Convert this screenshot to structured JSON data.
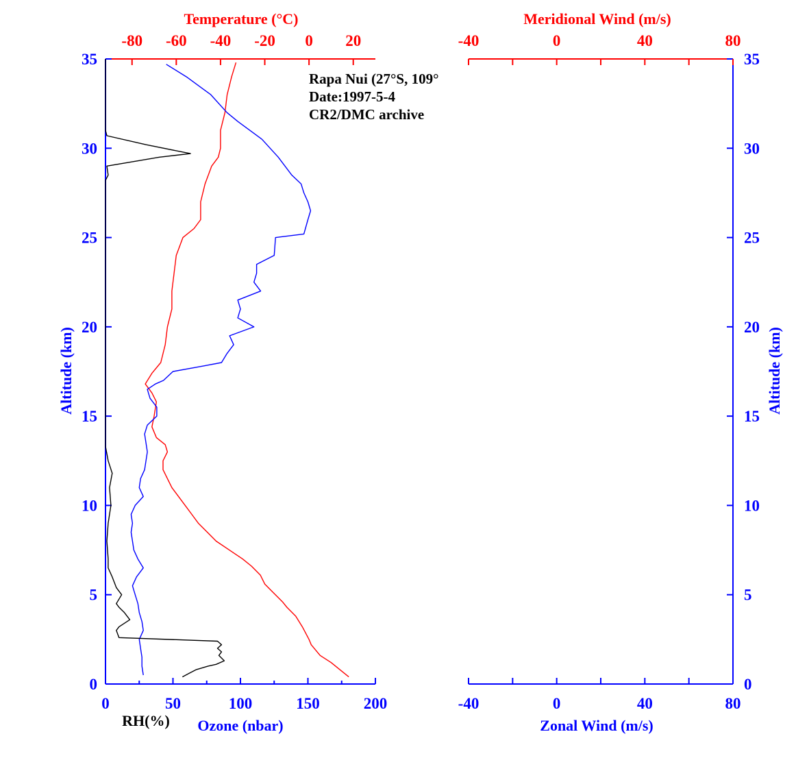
{
  "colors": {
    "blue": "#0000ff",
    "red": "#ff0000",
    "black": "#000000"
  },
  "annotation": {
    "station": "Rapa Nui (27°S, 109°",
    "date": "Date:1997-5-4",
    "archive": "CR2/DMC archive"
  },
  "left_panel": {
    "altitude_label": "Altitude (km)",
    "altitude_ticks": [
      "0",
      "5",
      "10",
      "15",
      "20",
      "25",
      "30",
      "35"
    ],
    "temperature_label": "Temperature (°C)",
    "temperature_ticks": [
      "-80",
      "-60",
      "-40",
      "-20",
      "0",
      "20"
    ],
    "ozone_label": "Ozone (nbar)",
    "rh_label": "RH(%)",
    "ozone_ticks": [
      "0",
      "50",
      "100",
      "150",
      "200"
    ]
  },
  "right_panel": {
    "altitude_label": "Altitude (km)",
    "altitude_ticks": [
      "0",
      "5",
      "10",
      "15",
      "20",
      "25",
      "30",
      "35"
    ],
    "meridional_label": "Meridional Wind (m/s)",
    "meridional_ticks": [
      "-40",
      "0",
      "40",
      "80"
    ],
    "zonal_label": "Zonal Wind (m/s)",
    "zonal_ticks": [
      "-40",
      "0",
      "40",
      "80"
    ]
  },
  "chart_data": {
    "type": "line",
    "ylim": [
      0,
      35
    ],
    "temperature_xlim": [
      -92,
      30
    ],
    "ozone_xlim": [
      0,
      200
    ],
    "rh_xlim": [
      0,
      200
    ],
    "wind_xlim": [
      -40,
      80
    ],
    "grid": false,
    "series": [
      {
        "name": "Temperature (°C)",
        "axis": "temperature",
        "color": "#ff0000",
        "points": [
          [
            18,
            0.4
          ],
          [
            14,
            0.8
          ],
          [
            10,
            1.2
          ],
          [
            5,
            1.6
          ],
          [
            1,
            2.2
          ],
          [
            0,
            2.5
          ],
          [
            -3,
            3.2
          ],
          [
            -6,
            3.8
          ],
          [
            -10,
            4.3
          ],
          [
            -12,
            4.6
          ],
          [
            -16,
            5.1
          ],
          [
            -20,
            5.6
          ],
          [
            -22,
            6.1
          ],
          [
            -26,
            6.6
          ],
          [
            -30,
            7.0
          ],
          [
            -36,
            7.5
          ],
          [
            -42,
            8.0
          ],
          [
            -46,
            8.5
          ],
          [
            -50,
            9.0
          ],
          [
            -53,
            9.5
          ],
          [
            -56,
            10.0
          ],
          [
            -59,
            10.5
          ],
          [
            -62,
            11.0
          ],
          [
            -64,
            11.5
          ],
          [
            -66,
            12.0
          ],
          [
            -66,
            12.5
          ],
          [
            -64,
            13.0
          ],
          [
            -65,
            13.4
          ],
          [
            -69,
            13.8
          ],
          [
            -71,
            14.4
          ],
          [
            -70,
            15.0
          ],
          [
            -69,
            15.8
          ],
          [
            -71,
            16.3
          ],
          [
            -74,
            16.8
          ],
          [
            -71,
            17.4
          ],
          [
            -67,
            18.0
          ],
          [
            -65,
            19.0
          ],
          [
            -64,
            20.0
          ],
          [
            -62,
            21.0
          ],
          [
            -62,
            22.0
          ],
          [
            -61,
            23.0
          ],
          [
            -60,
            24.0
          ],
          [
            -57,
            25.0
          ],
          [
            -52,
            25.5
          ],
          [
            -49,
            26.0
          ],
          [
            -49,
            27.0
          ],
          [
            -47,
            28.0
          ],
          [
            -44,
            29.0
          ],
          [
            -41,
            29.5
          ],
          [
            -40,
            30.0
          ],
          [
            -40,
            31.0
          ],
          [
            -38,
            32.0
          ],
          [
            -37,
            33.0
          ],
          [
            -35,
            34.0
          ],
          [
            -33,
            34.8
          ]
        ]
      },
      {
        "name": "Ozone (nbar)",
        "axis": "ozone",
        "color": "#0000ff",
        "points": [
          [
            28,
            0.5
          ],
          [
            27,
            1.0
          ],
          [
            27,
            1.5
          ],
          [
            26,
            2.0
          ],
          [
            25,
            2.5
          ],
          [
            28,
            3.0
          ],
          [
            27,
            3.5
          ],
          [
            25,
            4.0
          ],
          [
            24,
            4.5
          ],
          [
            22,
            5.0
          ],
          [
            20,
            5.5
          ],
          [
            23,
            6.0
          ],
          [
            28,
            6.5
          ],
          [
            24,
            7.0
          ],
          [
            21,
            7.5
          ],
          [
            20,
            8.0
          ],
          [
            19,
            8.5
          ],
          [
            20,
            9.0
          ],
          [
            19,
            9.5
          ],
          [
            22,
            10.0
          ],
          [
            28,
            10.5
          ],
          [
            25,
            11.0
          ],
          [
            26,
            11.5
          ],
          [
            29,
            12.0
          ],
          [
            30,
            12.5
          ],
          [
            31,
            13.0
          ],
          [
            30,
            13.5
          ],
          [
            29,
            14.0
          ],
          [
            31,
            14.5
          ],
          [
            38,
            15.0
          ],
          [
            38,
            15.5
          ],
          [
            33,
            16.0
          ],
          [
            31,
            16.5
          ],
          [
            37,
            16.8
          ],
          [
            43,
            17.0
          ],
          [
            50,
            17.5
          ],
          [
            72,
            17.8
          ],
          [
            86,
            18.0
          ],
          [
            90,
            18.5
          ],
          [
            95,
            19.0
          ],
          [
            92,
            19.5
          ],
          [
            110,
            20.0
          ],
          [
            98,
            20.5
          ],
          [
            100,
            21.0
          ],
          [
            98,
            21.5
          ],
          [
            115,
            22.0
          ],
          [
            110,
            22.5
          ],
          [
            112,
            23.0
          ],
          [
            112,
            23.5
          ],
          [
            125,
            24.0
          ],
          [
            126,
            25.0
          ],
          [
            147,
            25.2
          ],
          [
            150,
            26.0
          ],
          [
            152,
            26.5
          ],
          [
            150,
            27.0
          ],
          [
            147,
            27.5
          ],
          [
            145,
            28.0
          ],
          [
            138,
            28.5
          ],
          [
            128,
            29.5
          ],
          [
            116,
            30.5
          ],
          [
            98,
            31.5
          ],
          [
            90,
            32.0
          ],
          [
            78,
            33.0
          ],
          [
            60,
            34.0
          ],
          [
            45,
            34.7
          ]
        ]
      },
      {
        "name": "RH(%)",
        "axis": "rh",
        "color": "#000000",
        "points": [
          [
            57,
            0.4
          ],
          [
            62,
            0.6
          ],
          [
            67,
            0.8
          ],
          [
            76,
            1.0
          ],
          [
            82,
            1.1
          ],
          [
            88,
            1.3
          ],
          [
            84,
            1.6
          ],
          [
            86,
            1.8
          ],
          [
            83,
            2.0
          ],
          [
            86,
            2.2
          ],
          [
            83,
            2.4
          ],
          [
            10,
            2.6
          ],
          [
            8,
            3.0
          ],
          [
            10,
            3.2
          ],
          [
            18,
            3.6
          ],
          [
            14,
            4.0
          ],
          [
            10,
            4.3
          ],
          [
            8,
            4.5
          ],
          [
            12,
            5.0
          ],
          [
            8,
            5.4
          ],
          [
            5,
            6.0
          ],
          [
            2,
            6.5
          ],
          [
            2,
            7.0
          ],
          [
            1,
            8.0
          ],
          [
            2,
            9.0
          ],
          [
            4,
            10.0
          ],
          [
            3,
            11.0
          ],
          [
            5,
            11.8
          ],
          [
            2,
            12.5
          ],
          [
            0,
            13.3
          ],
          [
            0,
            16.0
          ],
          [
            0,
            28.2
          ],
          [
            2,
            28.5
          ],
          [
            1,
            29.0
          ],
          [
            40,
            29.5
          ],
          [
            63,
            29.7
          ],
          [
            30,
            30.2
          ],
          [
            1,
            30.7
          ],
          [
            0,
            31.0
          ],
          [
            0,
            35.0
          ]
        ]
      },
      {
        "name": "Zonal Wind (m/s)",
        "axis": "zonal",
        "values": []
      },
      {
        "name": "Meridional Wind (m/s)",
        "axis": "meridional",
        "values": []
      }
    ]
  }
}
